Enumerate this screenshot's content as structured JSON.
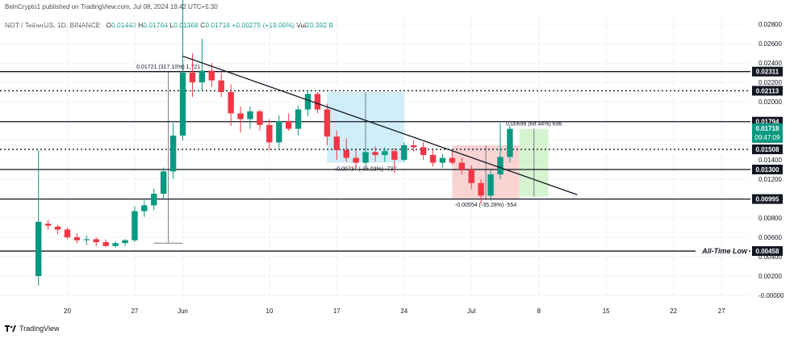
{
  "header": {
    "publisher_line": "BelnCrypto1 published on TradingView.com, Jul 08, 2024 19:42 UTC+5:30",
    "symbol": "NOT / TetherUS, 1D, BINANCE",
    "open_label": "O",
    "open": "0.01443",
    "high_label": "H",
    "high": "0.01764",
    "low_label": "L",
    "low": "0.01368",
    "close_label": "C",
    "close": "0.01718",
    "change": "+0.00275 (+19.06%)",
    "vol_label": "Vol",
    "vol": "20.392 B"
  },
  "footer": {
    "brand": "TradingView"
  },
  "colors": {
    "up": "#089981",
    "down": "#f23645",
    "trendline": "#131722",
    "level": "#131722",
    "box_blue": "#bfe8f5",
    "box_red": "#f8c4c4",
    "box_green": "#c9f0c0"
  },
  "chart_data": {
    "type": "candlestick",
    "price_axis": {
      "ticks": [
        "0.02800",
        "0.02600",
        "0.02400",
        "0.02200",
        "0.02000",
        "0.01800",
        "0.01600",
        "0.01400",
        "0.01200",
        "0.01000",
        "0.00800",
        "0.00600",
        "0.00400",
        "0.00200",
        "-0.00000"
      ],
      "ylim": [
        -0.0005,
        0.029
      ]
    },
    "time_axis": {
      "ticks": [
        {
          "label": "20",
          "day": 3
        },
        {
          "label": "27",
          "day": 10
        },
        {
          "label": "Jun",
          "day": 15
        },
        {
          "label": "10",
          "day": 24
        },
        {
          "label": "17",
          "day": 31
        },
        {
          "label": "24",
          "day": 38
        },
        {
          "label": "Jul",
          "day": 45
        },
        {
          "label": "8",
          "day": 52
        },
        {
          "label": "15",
          "day": 59
        },
        {
          "label": "22",
          "day": 66
        },
        {
          "label": "27",
          "day": 71
        }
      ],
      "xlim": [
        -4,
        74
      ]
    },
    "candles": [
      {
        "o": 0.002,
        "h": 0.015,
        "l": 0.001,
        "c": 0.0076
      },
      {
        "o": 0.0074,
        "h": 0.0078,
        "l": 0.0068,
        "c": 0.0072
      },
      {
        "o": 0.0071,
        "h": 0.0073,
        "l": 0.0063,
        "c": 0.0068
      },
      {
        "o": 0.0068,
        "h": 0.007,
        "l": 0.0058,
        "c": 0.006
      },
      {
        "o": 0.006,
        "h": 0.0064,
        "l": 0.0054,
        "c": 0.0057
      },
      {
        "o": 0.0057,
        "h": 0.0062,
        "l": 0.0052,
        "c": 0.0058
      },
      {
        "o": 0.0058,
        "h": 0.006,
        "l": 0.0051,
        "c": 0.0055
      },
      {
        "o": 0.0055,
        "h": 0.0058,
        "l": 0.005,
        "c": 0.0051
      },
      {
        "o": 0.0051,
        "h": 0.0056,
        "l": 0.0049,
        "c": 0.0054
      },
      {
        "o": 0.0054,
        "h": 0.0058,
        "l": 0.0051,
        "c": 0.0057
      },
      {
        "o": 0.0057,
        "h": 0.0092,
        "l": 0.0055,
        "c": 0.0087
      },
      {
        "o": 0.0087,
        "h": 0.0098,
        "l": 0.0081,
        "c": 0.0093
      },
      {
        "o": 0.0093,
        "h": 0.011,
        "l": 0.0088,
        "c": 0.0105
      },
      {
        "o": 0.0105,
        "h": 0.0132,
        "l": 0.01,
        "c": 0.0128
      },
      {
        "o": 0.0128,
        "h": 0.0178,
        "l": 0.012,
        "c": 0.0165
      },
      {
        "o": 0.0165,
        "h": 0.031,
        "l": 0.016,
        "c": 0.023
      },
      {
        "o": 0.023,
        "h": 0.025,
        "l": 0.0205,
        "c": 0.022
      },
      {
        "o": 0.022,
        "h": 0.0265,
        "l": 0.0212,
        "c": 0.0232
      },
      {
        "o": 0.0232,
        "h": 0.024,
        "l": 0.0215,
        "c": 0.0222
      },
      {
        "o": 0.0222,
        "h": 0.023,
        "l": 0.0205,
        "c": 0.021
      },
      {
        "o": 0.021,
        "h": 0.0218,
        "l": 0.0175,
        "c": 0.0188
      },
      {
        "o": 0.0188,
        "h": 0.0195,
        "l": 0.0168,
        "c": 0.0182
      },
      {
        "o": 0.0182,
        "h": 0.0195,
        "l": 0.0172,
        "c": 0.019
      },
      {
        "o": 0.019,
        "h": 0.0192,
        "l": 0.017,
        "c": 0.0176
      },
      {
        "o": 0.0176,
        "h": 0.0182,
        "l": 0.015,
        "c": 0.0158
      },
      {
        "o": 0.0158,
        "h": 0.0186,
        "l": 0.0152,
        "c": 0.018
      },
      {
        "o": 0.018,
        "h": 0.0188,
        "l": 0.017,
        "c": 0.0172
      },
      {
        "o": 0.0172,
        "h": 0.0196,
        "l": 0.0165,
        "c": 0.0192
      },
      {
        "o": 0.0192,
        "h": 0.0212,
        "l": 0.0185,
        "c": 0.0208
      },
      {
        "o": 0.0208,
        "h": 0.021,
        "l": 0.0188,
        "c": 0.0192
      },
      {
        "o": 0.0192,
        "h": 0.0198,
        "l": 0.0155,
        "c": 0.0164
      },
      {
        "o": 0.0164,
        "h": 0.017,
        "l": 0.014,
        "c": 0.015
      },
      {
        "o": 0.015,
        "h": 0.0162,
        "l": 0.0138,
        "c": 0.0142
      },
      {
        "o": 0.0142,
        "h": 0.015,
        "l": 0.0132,
        "c": 0.0137
      },
      {
        "o": 0.0137,
        "h": 0.0152,
        "l": 0.0133,
        "c": 0.0148
      },
      {
        "o": 0.0148,
        "h": 0.0154,
        "l": 0.0138,
        "c": 0.0145
      },
      {
        "o": 0.0145,
        "h": 0.0153,
        "l": 0.0138,
        "c": 0.0149
      },
      {
        "o": 0.0149,
        "h": 0.0152,
        "l": 0.0126,
        "c": 0.014
      },
      {
        "o": 0.014,
        "h": 0.0158,
        "l": 0.0138,
        "c": 0.0155
      },
      {
        "o": 0.0155,
        "h": 0.016,
        "l": 0.0148,
        "c": 0.0153
      },
      {
        "o": 0.0153,
        "h": 0.0158,
        "l": 0.014,
        "c": 0.0145
      },
      {
        "o": 0.0145,
        "h": 0.015,
        "l": 0.0133,
        "c": 0.0137
      },
      {
        "o": 0.0137,
        "h": 0.0146,
        "l": 0.0132,
        "c": 0.0142
      },
      {
        "o": 0.0142,
        "h": 0.015,
        "l": 0.0135,
        "c": 0.0137
      },
      {
        "o": 0.0137,
        "h": 0.0142,
        "l": 0.0125,
        "c": 0.013
      },
      {
        "o": 0.013,
        "h": 0.0134,
        "l": 0.011,
        "c": 0.0116
      },
      {
        "o": 0.0116,
        "h": 0.012,
        "l": 0.0095,
        "c": 0.0103
      },
      {
        "o": 0.0103,
        "h": 0.013,
        "l": 0.0098,
        "c": 0.0125
      },
      {
        "o": 0.0125,
        "h": 0.0178,
        "l": 0.012,
        "c": 0.0143
      },
      {
        "o": 0.0143,
        "h": 0.0176,
        "l": 0.0137,
        "c": 0.0172
      }
    ],
    "horizontal_levels": [
      {
        "value": 0.02311,
        "label": "0.02311",
        "style": "solid"
      },
      {
        "value": 0.02113,
        "label": "0.02113",
        "style": "dotted"
      },
      {
        "value": 0.01794,
        "label": "0.01794",
        "style": "solid"
      },
      {
        "value": 0.01508,
        "label": "0.01508",
        "style": "dotted"
      },
      {
        "value": 0.013,
        "label": "0.01300",
        "style": "solid"
      },
      {
        "value": 0.00995,
        "label": "0.00995",
        "style": "solid"
      },
      {
        "value": 0.00458,
        "label": "0.00458",
        "style": "solid"
      }
    ],
    "current_price": {
      "value": 0.01718,
      "label": "0.01718",
      "countdown": "09:47:09"
    },
    "trendline": {
      "from": {
        "day": 15,
        "price": 0.0247
      },
      "to": {
        "day": 56,
        "price": 0.0104
      }
    },
    "measurements": [
      {
        "from_day": 12,
        "to_day": 15,
        "low": 0.0054,
        "high": 0.0231,
        "color": "#ffffff",
        "label": "0.01721 (317.10%) 1,721",
        "direction": "up"
      },
      {
        "from_day": 30,
        "to_day": 38,
        "low": 0.0137,
        "high": 0.021,
        "color": "#bfe8f5",
        "label": "-0.00737 (-35.03%) -737",
        "direction": "down"
      },
      {
        "from_day": 43,
        "to_day": 50,
        "low": 0.01,
        "high": 0.0155,
        "color": "#f8c4c4",
        "label": "-0.00554 (-35.28%) -554",
        "direction": "down"
      },
      {
        "from_day": 50,
        "to_day": 53,
        "low": 0.0102,
        "high": 0.0172,
        "color": "#c9f0c0",
        "label": "0.00696 (68.44%) 696",
        "direction": "up"
      }
    ],
    "annotations": [
      {
        "text": "All-Time Low",
        "value": 0.00458
      }
    ]
  }
}
